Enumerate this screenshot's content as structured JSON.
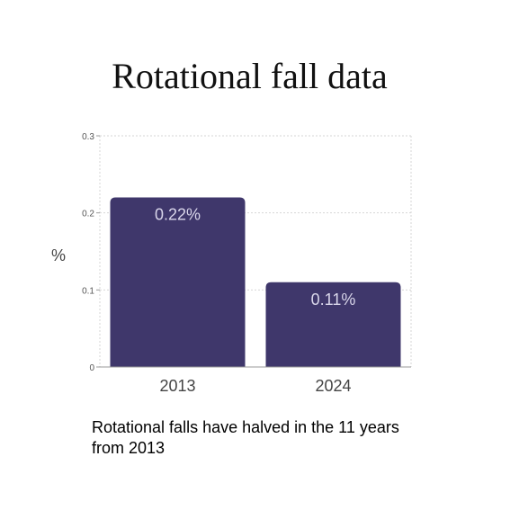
{
  "page": {
    "title": "Rotational fall data",
    "caption": "Rotational falls have halved in the 11 years from 2013"
  },
  "chart_data": {
    "type": "bar",
    "title": "Rotational fall data",
    "xlabel": "",
    "ylabel": "%",
    "categories": [
      "2013",
      "2024"
    ],
    "values": [
      0.22,
      0.11
    ],
    "data_labels": [
      "0.22%",
      "0.11%"
    ],
    "ylim": [
      0,
      0.3
    ],
    "yticks": [
      0,
      0.1,
      0.2,
      0.3
    ],
    "ytick_labels": [
      "0",
      "0.1",
      "0.2",
      "0.3"
    ],
    "grid": true,
    "legend": "none",
    "colors": {
      "bar": "#3f376b",
      "data_label": "#d9d6ea",
      "grid": "#d6d6d6",
      "axis": "#9a9a9a",
      "tick_label": "#555555",
      "category_label": "#444444"
    }
  }
}
